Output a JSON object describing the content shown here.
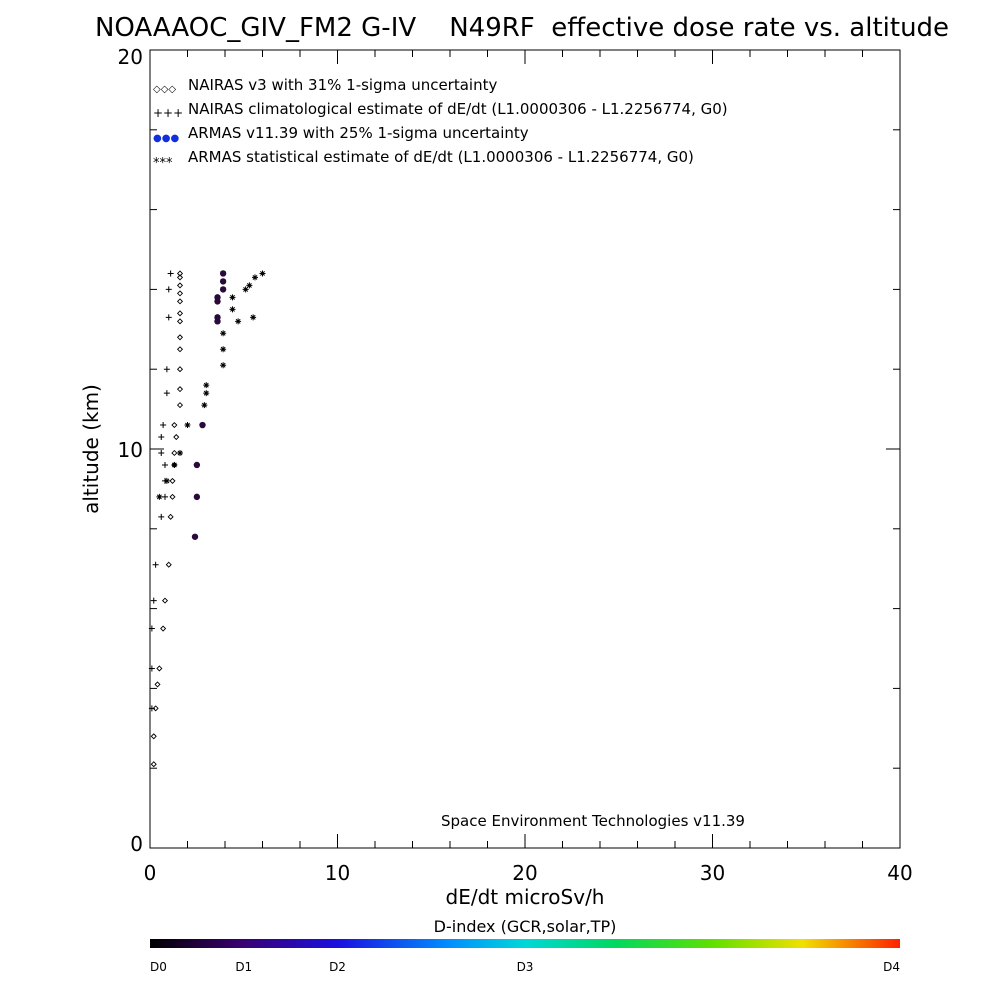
{
  "chart_data": {
    "type": "scatter",
    "title": "NOAAAOC_GIV_FM2 G-IV    N49RF  effective dose rate vs. altitude",
    "xlabel": "dE/dt microSv/h",
    "ylabel": "altitude (km)",
    "xlim": [
      0,
      40
    ],
    "ylim": [
      0,
      20
    ],
    "x_ticks": [
      "0",
      "10",
      "20",
      "30",
      "40"
    ],
    "y_ticks": [
      "0",
      "10",
      "20"
    ],
    "legend_position": "top-left",
    "legend": [
      {
        "symbol": "◇◇◇",
        "label": "NAIRAS v3 with 31% 1-sigma uncertainty"
      },
      {
        "symbol": "+++",
        "label": "NAIRAS climatological estimate of dE/dt (L1.0000306 - L1.2256774, G0)"
      },
      {
        "symbol": "●●●",
        "label": "ARMAS v11.39 with 25% 1-sigma uncertainty"
      },
      {
        "symbol": "***",
        "label": "ARMAS statistical estimate of dE/dt (L1.0000306 - L1.2256774, G0)"
      }
    ],
    "credit": "Space Environment Technologies v11.39",
    "colorbar": {
      "label": "D-index (GCR,solar,TP)",
      "ticks": [
        "D0",
        "D1",
        "D2",
        "D3",
        "D4"
      ],
      "tick_positions": [
        0,
        0.125,
        0.25,
        0.5,
        1.0
      ]
    },
    "series": [
      {
        "name": "NAIRAS v3 with 31% 1-sigma uncertainty",
        "marker": "diamond",
        "points": [
          [
            1.6,
            14.4
          ],
          [
            1.6,
            14.3
          ],
          [
            1.6,
            14.1
          ],
          [
            1.6,
            13.9
          ],
          [
            1.6,
            13.7
          ],
          [
            1.6,
            13.4
          ],
          [
            1.6,
            13.2
          ],
          [
            1.6,
            12.8
          ],
          [
            1.6,
            12.5
          ],
          [
            1.6,
            12.0
          ],
          [
            1.6,
            11.5
          ],
          [
            1.6,
            11.1
          ],
          [
            1.3,
            10.6
          ],
          [
            1.4,
            10.3
          ],
          [
            1.3,
            9.9
          ],
          [
            1.3,
            9.6
          ],
          [
            1.2,
            9.2
          ],
          [
            1.2,
            8.8
          ],
          [
            1.1,
            8.3
          ],
          [
            1.0,
            7.1
          ],
          [
            0.8,
            6.2
          ],
          [
            0.7,
            5.5
          ],
          [
            0.5,
            4.5
          ],
          [
            0.4,
            4.1
          ],
          [
            0.3,
            3.5
          ],
          [
            0.2,
            2.8
          ],
          [
            0.2,
            2.1
          ]
        ]
      },
      {
        "name": "NAIRAS climatological estimate of dE/dt (L1.0000306 - L1.2256774, G0)",
        "marker": "plus",
        "points": [
          [
            1.1,
            14.4
          ],
          [
            1.0,
            14.0
          ],
          [
            1.0,
            13.3
          ],
          [
            0.9,
            12.0
          ],
          [
            0.9,
            11.4
          ],
          [
            0.7,
            10.6
          ],
          [
            0.6,
            10.3
          ],
          [
            0.6,
            9.9
          ],
          [
            0.8,
            9.6
          ],
          [
            0.8,
            9.2
          ],
          [
            0.8,
            8.8
          ],
          [
            0.6,
            8.3
          ],
          [
            0.3,
            7.1
          ],
          [
            0.2,
            6.2
          ],
          [
            0.1,
            5.5
          ],
          [
            0.1,
            4.5
          ],
          [
            0.1,
            3.5
          ]
        ]
      },
      {
        "name": "ARMAS v11.39 with 25% 1-sigma uncertainty",
        "marker": "circle",
        "points": [
          [
            3.9,
            14.4
          ],
          [
            3.9,
            14.2
          ],
          [
            3.9,
            14.0
          ],
          [
            3.6,
            13.8
          ],
          [
            3.6,
            13.7
          ],
          [
            3.6,
            13.3
          ],
          [
            3.6,
            13.2
          ],
          [
            2.8,
            10.6
          ],
          [
            2.5,
            9.6
          ],
          [
            2.5,
            8.8
          ],
          [
            2.4,
            7.8
          ]
        ]
      },
      {
        "name": "ARMAS statistical estimate of dE/dt (L1.0000306 - L1.2256774, G0)",
        "marker": "asterisk",
        "points": [
          [
            6.0,
            14.4
          ],
          [
            5.6,
            14.3
          ],
          [
            5.3,
            14.1
          ],
          [
            5.1,
            14.0
          ],
          [
            4.4,
            13.8
          ],
          [
            4.4,
            13.5
          ],
          [
            4.7,
            13.2
          ],
          [
            5.5,
            13.3
          ],
          [
            3.9,
            12.9
          ],
          [
            3.9,
            12.5
          ],
          [
            3.9,
            12.1
          ],
          [
            3.0,
            11.6
          ],
          [
            3.0,
            11.4
          ],
          [
            2.9,
            11.1
          ],
          [
            2.0,
            10.6
          ],
          [
            1.6,
            9.9
          ],
          [
            1.3,
            9.6
          ],
          [
            0.9,
            9.2
          ],
          [
            0.5,
            8.8
          ]
        ]
      }
    ]
  }
}
